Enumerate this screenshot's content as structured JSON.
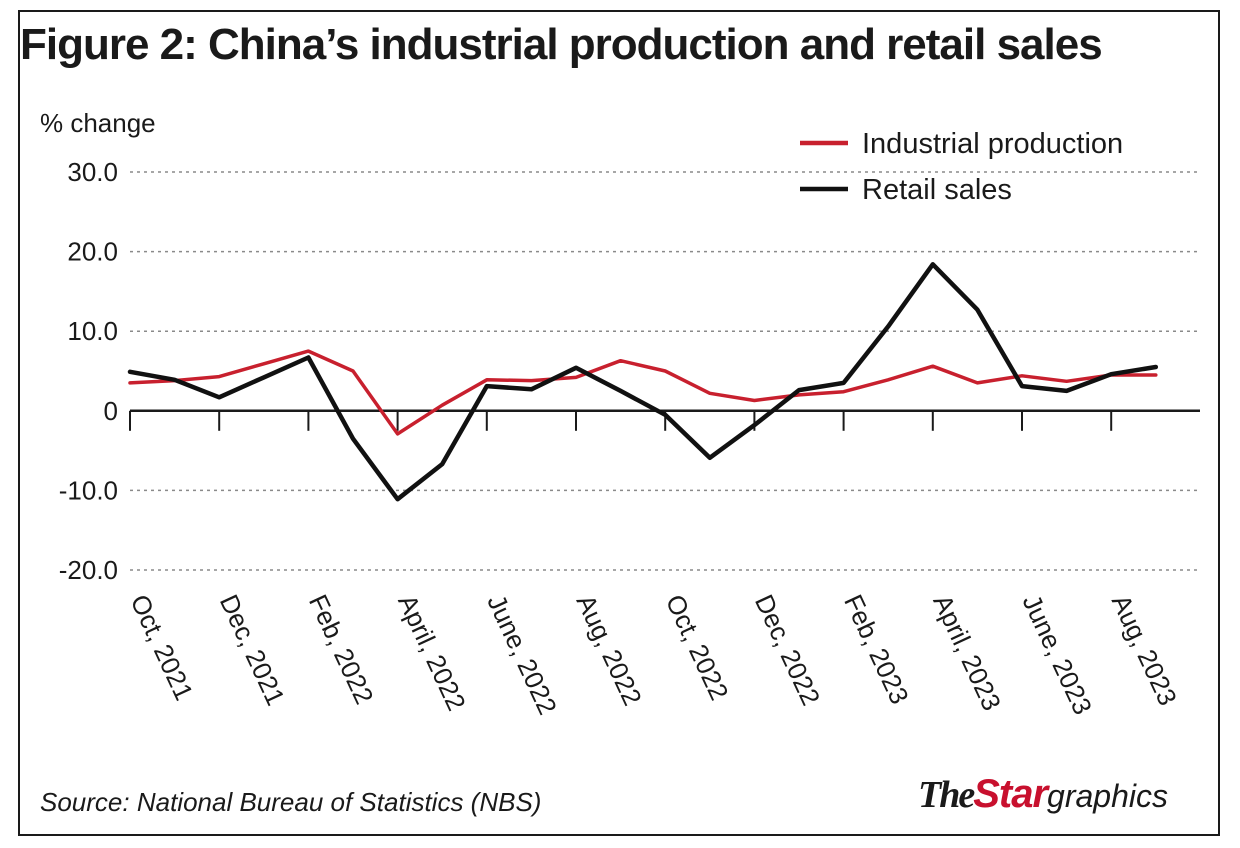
{
  "chart_data": {
    "type": "line",
    "title": "Figure 2: China’s industrial production and retail sales",
    "ylabel": "% change",
    "xlabel": "",
    "ylim": [
      -20,
      30
    ],
    "yticks": [
      30,
      20,
      10,
      0,
      -10,
      -20
    ],
    "ytick_labels": [
      "30.0",
      "20.0",
      "10.0",
      "0",
      "-10.0",
      "-20.0"
    ],
    "x": [
      "Oct, 2021",
      "Nov, 2021",
      "Dec, 2021",
      "Jan, 2022",
      "Feb, 2022",
      "Mar, 2022",
      "April, 2022",
      "May, 2022",
      "June, 2022",
      "July, 2022",
      "Aug, 2022",
      "Sep, 2022",
      "Oct, 2022",
      "Nov, 2022",
      "Dec, 2022",
      "Jan, 2023",
      "Feb, 2023",
      "Mar, 2023",
      "April, 2023",
      "May, 2023",
      "June, 2023",
      "July, 2023",
      "Aug, 2023",
      "Sep, 2023"
    ],
    "x_tick_labels": [
      "Oct, 2021",
      "Dec, 2021",
      "Feb, 2022",
      "April, 2022",
      "June, 2022",
      "Aug, 2022",
      "Oct, 2022",
      "Dec, 2022",
      "Feb, 2023",
      "April, 2023",
      "June, 2023",
      "Aug, 2023"
    ],
    "series": [
      {
        "name": "Industrial production",
        "color": "#c8202e",
        "values": [
          3.5,
          3.8,
          4.3,
          5.9,
          7.5,
          5.0,
          -2.9,
          0.7,
          3.9,
          3.8,
          4.2,
          6.3,
          5.0,
          2.2,
          1.3,
          2.0,
          2.4,
          3.9,
          5.6,
          3.5,
          4.4,
          3.7,
          4.5,
          4.5
        ]
      },
      {
        "name": "Retail sales",
        "color": "#111111",
        "values": [
          4.9,
          3.9,
          1.7,
          4.2,
          6.7,
          -3.5,
          -11.1,
          -6.7,
          3.1,
          2.7,
          5.4,
          2.5,
          -0.5,
          -5.9,
          -1.8,
          2.6,
          3.5,
          10.6,
          18.4,
          12.7,
          3.1,
          2.5,
          4.6,
          5.5
        ]
      }
    ],
    "grid": true,
    "legend_position": "top-right"
  },
  "footer": {
    "source": "Source: National Bureau of Statistics (NBS)",
    "brand_the": "The",
    "brand_star": "Star",
    "brand_graphics": "graphics"
  }
}
